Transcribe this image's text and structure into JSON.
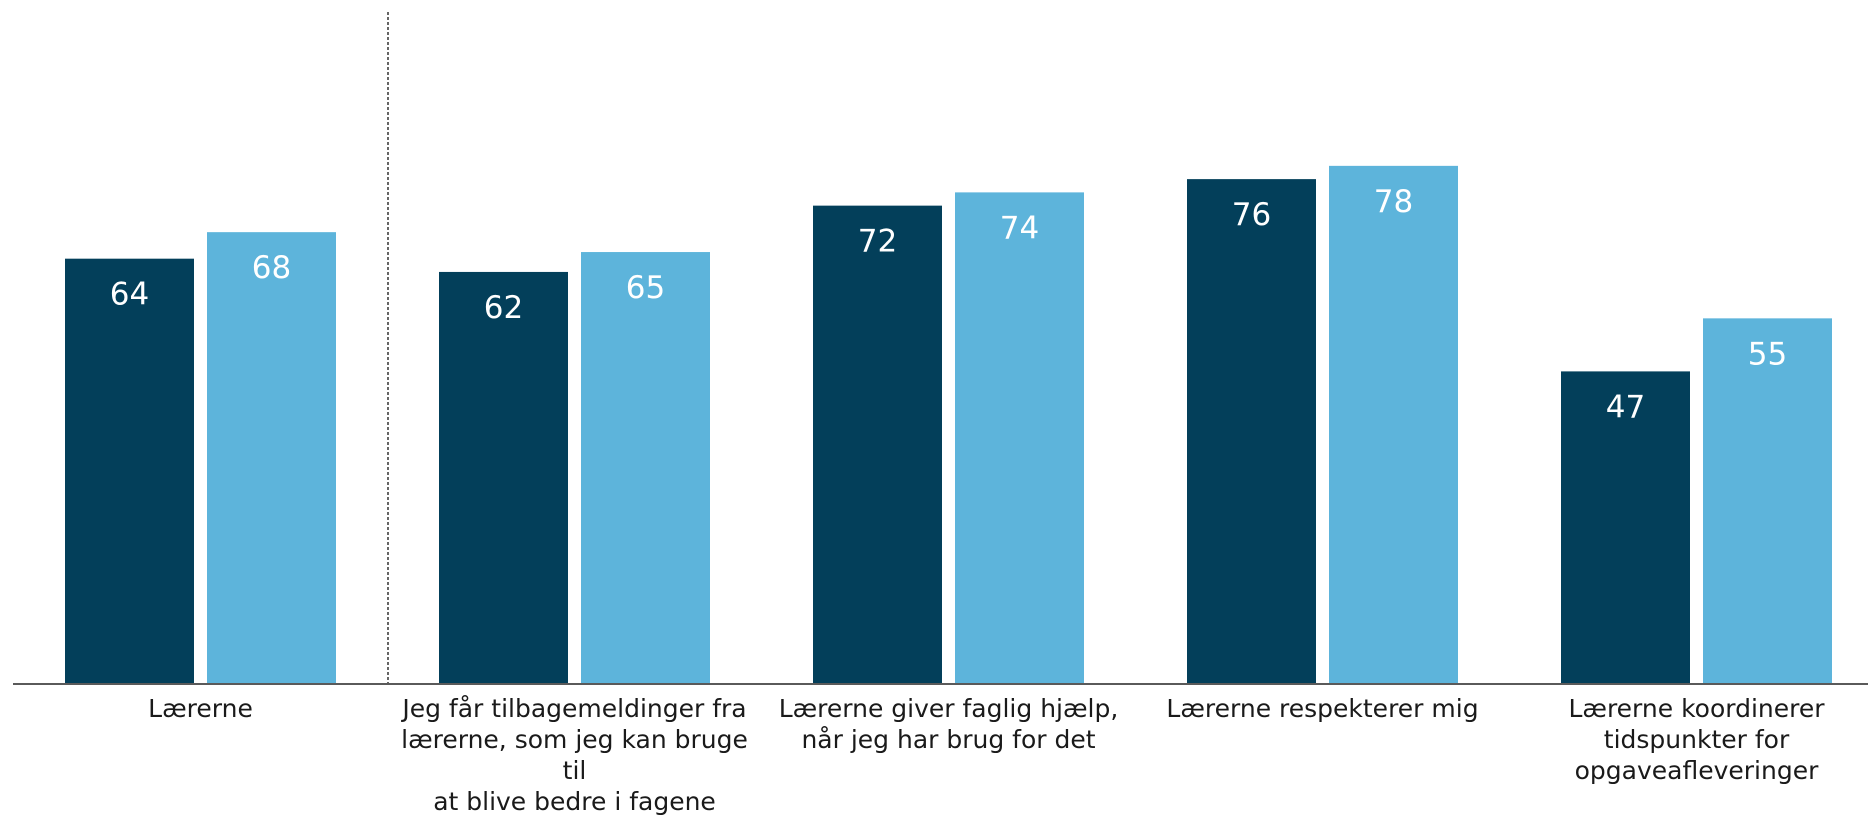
{
  "chart_data": {
    "type": "bar",
    "categories": [
      "Lærerne",
      "Jeg får tilbagemeldinger fra lærerne, som jeg kan bruge til at blive bedre i fagene",
      "Lærerne giver faglig hjælp, når jeg har brug for det",
      "Lærerne respekterer mig",
      "Lærerne koordinerer tidspunkter for opgaveafleveringer"
    ],
    "category_lines": [
      [
        "Lærerne"
      ],
      [
        "Jeg får tilbagemeldinger fra",
        "lærerne, som jeg kan bruge til",
        "at blive bedre i fagene"
      ],
      [
        "Lærerne giver faglig hjælp,",
        "når jeg har brug for det"
      ],
      [
        "Lærerne respekterer mig"
      ],
      [
        "Lærerne koordinerer",
        "tidspunkter for",
        "opgaveafleveringer"
      ]
    ],
    "series": [
      {
        "values": [
          64,
          62,
          72,
          76,
          47
        ],
        "color": "#033f5a"
      },
      {
        "values": [
          68,
          65,
          74,
          78,
          55
        ],
        "color": "#5db4db"
      }
    ],
    "ylim": [
      0,
      100
    ],
    "grid": false,
    "legend": "none",
    "separator_after_category": 0
  }
}
